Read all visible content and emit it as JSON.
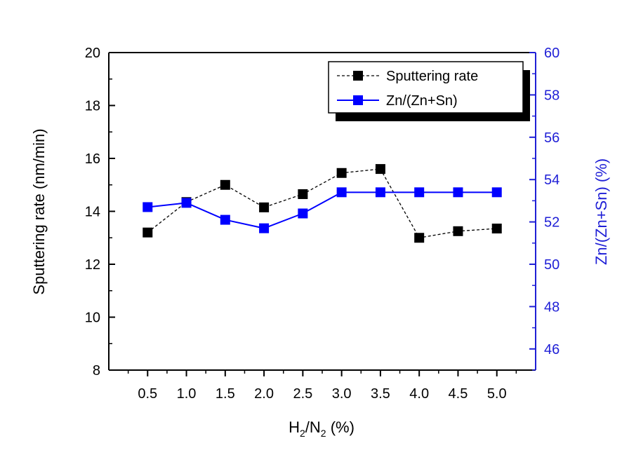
{
  "chart_data": {
    "type": "line",
    "x": [
      0.5,
      1.0,
      1.5,
      2.0,
      2.5,
      3.0,
      3.5,
      4.0,
      4.5,
      5.0
    ],
    "x_tick_labels": [
      "0.5",
      "1.0",
      "1.5",
      "2.0",
      "2.5",
      "3.0",
      "3.5",
      "4.0",
      "4.5",
      "5.0"
    ],
    "xlabel": {
      "main": "H",
      "sub1": "2",
      "slash": "/N",
      "sub2": "2",
      "tail": " (%)"
    },
    "ylabel_left": "Sputtering rate (nm/min)",
    "ylabel_right": "Zn/(Zn+Sn) (%)",
    "ylim_left": [
      8,
      20
    ],
    "ylim_right": [
      45,
      60
    ],
    "y_ticks_left": [
      "8",
      "10",
      "12",
      "14",
      "16",
      "18",
      "20"
    ],
    "y_ticks_right": [
      "46",
      "48",
      "50",
      "52",
      "54",
      "56",
      "58",
      "60"
    ],
    "grid": false,
    "legend_position": "top-right",
    "series": [
      {
        "name": "Sputtering rate",
        "axis": "left",
        "color": "#000000",
        "line_style": "dashed",
        "marker": "square",
        "values": [
          13.2,
          14.35,
          15.0,
          14.15,
          14.65,
          15.45,
          15.6,
          13.0,
          13.25,
          13.35
        ]
      },
      {
        "name": "Zn/(Zn+Sn)",
        "axis": "right",
        "color": "#0000ff",
        "line_style": "solid",
        "marker": "square",
        "values": [
          52.7,
          52.9,
          52.1,
          51.7,
          52.4,
          53.4,
          53.4,
          53.4,
          53.4,
          53.4
        ]
      }
    ]
  },
  "colors": {
    "left_axis": "#000000",
    "right_axis": "#1f1fd6"
  }
}
